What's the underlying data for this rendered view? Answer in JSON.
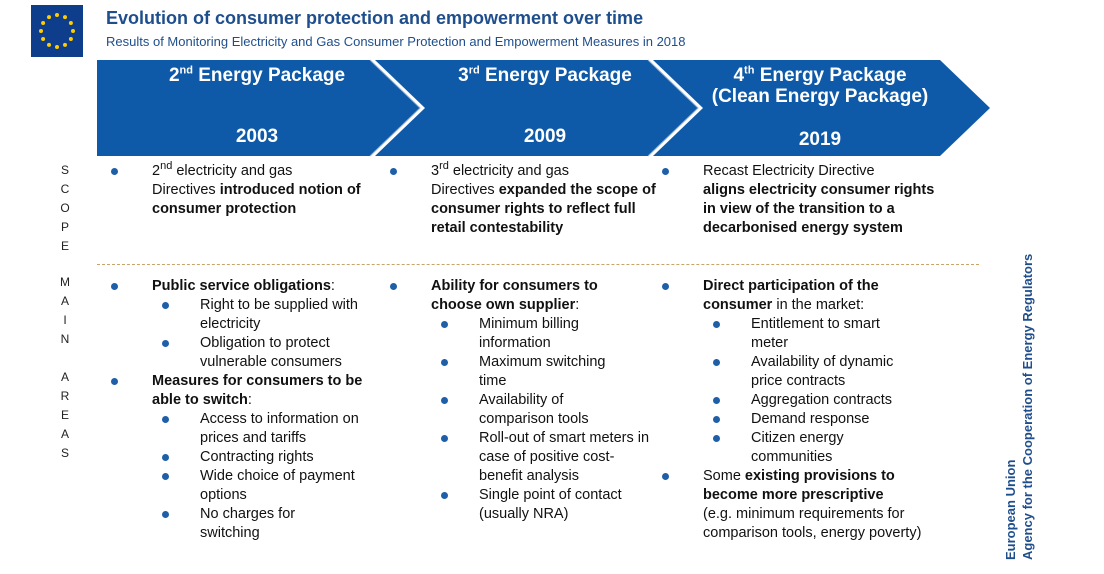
{
  "header": {
    "title": "Evolution of consumer protection and empowerment over time",
    "subtitle": "Results of Monitoring  Electricity and Gas Consumer Protection and Empowerment  Measures in 2018"
  },
  "colors": {
    "band": "#0f5aa8",
    "bullet": "#1f5fa8",
    "title": "#1f4e8c",
    "divider": "#c9a46a"
  },
  "packages": [
    {
      "num": "2",
      "sup": "nd",
      "title_rest": " Energy Package",
      "title_line2": "",
      "year": "2003"
    },
    {
      "num": "3",
      "sup": "rd",
      "title_rest": " Energy Package",
      "title_line2": "",
      "year": "2009"
    },
    {
      "num": "4",
      "sup": "th",
      "title_rest": " Energy Package",
      "title_line2": "(Clean Energy Package)",
      "year": "2019"
    }
  ],
  "row_labels": {
    "scope": "SCOPE",
    "main_areas": "MAIN AREAS"
  },
  "scope": {
    "c1": {
      "a": "2",
      "a_sup": "nd",
      "b": " electricity and gas",
      "c": "Directives ",
      "d": "introduced notion of consumer protection"
    },
    "c2": {
      "a": "3",
      "a_sup": "rd",
      "b": " electricity and gas",
      "c": "Directives ",
      "d": "expanded the scope of consumer rights to reflect full retail contestability"
    },
    "c3": {
      "a": "Recast Electricity Directive",
      "d": "aligns electricity consumer rights in view of the transition to a decarbonised energy system"
    }
  },
  "areas": {
    "c1": {
      "h1": "Public service obligations",
      "h1_tail": ":",
      "s1": [
        "Right to be supplied with electricity",
        "Obligation to protect vulnerable  consumers"
      ],
      "h2": "Measures for consumers to be able to switch",
      "h2_tail": ":",
      "s2": [
        "Access to information on prices and tariffs",
        "Contracting rights",
        "Wide choice of payment options",
        "No charges for switching"
      ]
    },
    "c2": {
      "h1": "Ability for consumers to choose own supplier",
      "h1_tail": ":",
      "s1": [
        "Minimum billing information",
        "Maximum switching time",
        "Availability of comparison tools",
        "Roll-out of smart meters in case of positive cost-benefit analysis",
        "Single point of contact (usually  NRA)"
      ]
    },
    "c3": {
      "h1": "Direct participation of the consumer",
      "h1_tail": " in the market:",
      "s1": [
        "Entitlement to smart meter",
        "Availability of dynamic price contracts",
        "Aggregation contracts",
        "Demand response",
        "Citizen energy communities"
      ],
      "h2_pre": "Some ",
      "h2": "existing provisions to become more prescriptive",
      "h2_note": "(e.g. minimum requirements for comparison tools, energy poverty)"
    }
  },
  "footer": {
    "line1": "European Union",
    "line2": "Agency for the Cooperation of Energy Regulators"
  }
}
